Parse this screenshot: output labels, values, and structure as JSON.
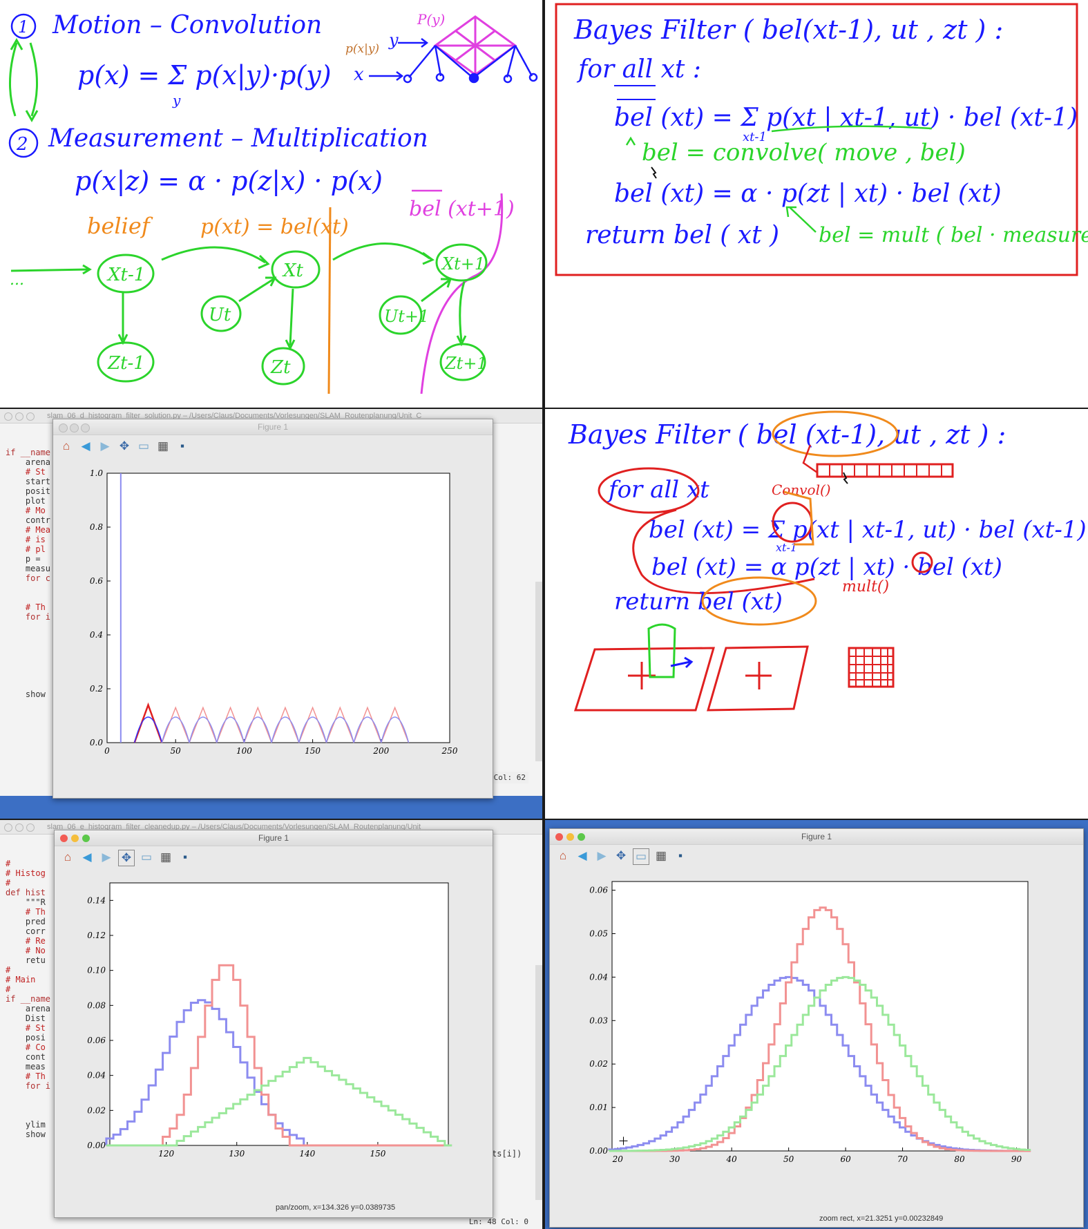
{
  "whiteboard_top_left": {
    "motion_heading": "Motion – Convolution",
    "motion_formula": "p(x) = Σ p(x|y)·p(y)",
    "motion_sum_sub": "y",
    "label_py": "P(y)",
    "label_pxy": "p(x|y)",
    "label_y": "y",
    "label_x": "x",
    "measurement_heading": "Measurement – Multiplication",
    "measurement_formula": "p(x|z) = α · p(z|x) · p(x)",
    "belief_label": "belief",
    "pxt_label": "p(xt) = bel(xt)",
    "bel_next_label": "bel (xt+1)",
    "node_xt_1": "Xt-1",
    "node_xt": "Xt",
    "node_xt1": "Xt+1",
    "node_ut": "Ut",
    "node_ut1": "Ut+1",
    "node_zt_1": "Zt-1",
    "node_zt": "Zt",
    "node_zt1": "Zt+1",
    "dots": "...",
    "num1": "1",
    "num2": "2"
  },
  "whiteboard_top_right": {
    "line1": "Bayes Filter ( bel(xt-1), ut , zt ) :",
    "line2": "for all  xt :",
    "line3": "bel (xt) = Σ p(xt | xt-1, ut) · bel (xt-1)",
    "line3_sub": "xt-1",
    "line4": "bel = convolve( move , bel)",
    "line5": "bel (xt) = α · p(zt | xt) · bel (xt)",
    "line6": "return  bel ( xt )",
    "line6_note": "bel = mult ( bel · measurement)"
  },
  "whiteboard_mid_right": {
    "line1": "Bayes Filter ( bel (xt-1), ut , zt ) :",
    "line2": "for all  xt",
    "convol": "Convol()",
    "line3": "bel (xt) = Σ p(xt | xt-1, ut) · bel (xt-1)",
    "line3_sub": "xt-1",
    "line4": "bel (xt) = α p(zt | xt) · bel (xt)",
    "mult": "mult()",
    "line5": "return  bel (xt)"
  },
  "editor_mid": {
    "title": "slam_06_d_histogram_filter_solution.py – /Users/Claus/Documents/Vorlesungen/SLAM_Routenplanung/Unit_C",
    "lines": [
      "if __name",
      "    arena",
      "",
      "    # St",
      "    start",
      "    posit",
      "    plot",
      "",
      "    # Mo",
      "    contr",
      "",
      "    # Mea",
      "    # is",
      "    # pl",
      "    p = ",
      "    measu",
      "    for c",
      "        ",
      "        ",
      "",
      "    # Th",
      "    for i",
      "        ",
      "        ",
      "        ",
      "",
      "        ",
      "        ",
      "        ",
      "        ",
      "",
      "    show"
    ],
    "status": "Col: 62"
  },
  "figure_mid": {
    "title": "Figure 1",
    "xticks": [
      "0",
      "50",
      "100",
      "150",
      "200",
      "250"
    ],
    "yticks": [
      "0.0",
      "0.2",
      "0.4",
      "0.6",
      "0.8",
      "1.0"
    ]
  },
  "editor_bottom": {
    "title": "slam_06_e_histogram_filter_cleanedup.py – /Users/Claus/Documents/Vorlesungen/SLAM_Routenplanung/Unit_",
    "lines": [
      "#",
      "# Histog",
      "#",
      "def hist",
      "    \"\"\"R",
      "    # Th",
      "    pred",
      "    corr",
      "",
      "    # Re",
      "    # No",
      "    retu",
      "",
      "",
      "#",
      "# Main",
      "#",
      "if __name",
      "    arena",
      "    Dist",
      "",
      "    # St",
      "    posi",
      "",
      "    # Co",
      "    cont",
      "    meas",
      "",
      "    # Th",
      "    for i",
      "        ",
      "        ",
      "        ",
      "",
      "    ylim",
      "    show"
    ],
    "right_snippet": "ts[i])",
    "status": "Ln: 48  Col: 0"
  },
  "figure_bottom_left": {
    "title": "Figure 1",
    "xticks": [
      "120",
      "130",
      "140",
      "150"
    ],
    "yticks": [
      "0.00",
      "0.02",
      "0.04",
      "0.06",
      "0.08",
      "0.10",
      "0.12",
      "0.14"
    ],
    "status": "pan/zoom, x=134.326      y=0.0389735"
  },
  "figure_bottom_right": {
    "title": "Figure 1",
    "xticks": [
      "20",
      "30",
      "40",
      "50",
      "60",
      "70",
      "80",
      "90"
    ],
    "yticks": [
      "0.00",
      "0.01",
      "0.02",
      "0.03",
      "0.04",
      "0.05",
      "0.06"
    ],
    "status": "zoom rect, x=21.3251      y=0.00232849"
  },
  "toolbar": {
    "home": "⌂",
    "back": "◀",
    "forward": "▶",
    "pan": "✥",
    "zoom": "▭",
    "subplots": "▦",
    "save": "▪"
  },
  "colors": {
    "green": "#2bd42b",
    "blue": "#1a1aff",
    "red": "#e02020",
    "orange": "#f08a1c",
    "magenta": "#e040e0",
    "plot_blue": "#8c8cf0",
    "plot_red": "#f29292",
    "plot_green": "#9be89b"
  },
  "chart_data": [
    {
      "type": "line",
      "panel": "figure_mid",
      "xlim": [
        0,
        250
      ],
      "ylim": [
        0,
        1.0
      ],
      "x": [
        10,
        10
      ],
      "series": [
        {
          "values": [
            0,
            1.0
          ]
        },
        {
          "values_note": "repeated triangular peaks",
          "peaks_x": [
            30,
            50,
            70,
            90,
            110,
            130,
            150,
            170,
            190,
            210
          ],
          "peak_height_red": 0.13,
          "peak_height_blue": 0.1
        }
      ]
    },
    {
      "type": "line",
      "panel": "figure_bottom_left",
      "xlim": [
        112,
        160
      ],
      "ylim": [
        0,
        0.15
      ],
      "series": [
        {
          "peak_x": 125,
          "peak_y": 0.083,
          "range": [
            112,
            139
          ]
        },
        {
          "peak_x": 128.5,
          "peak_y": 0.104,
          "range": [
            120,
            137
          ]
        },
        {
          "peak_x": 140,
          "peak_y": 0.05,
          "range": [
            121,
            160
          ]
        }
      ]
    },
    {
      "type": "line",
      "panel": "figure_bottom_right",
      "xlim": [
        19,
        92
      ],
      "ylim": [
        0,
        0.062
      ],
      "series": [
        {
          "peak_x": 50,
          "peak_y": 0.04,
          "sigma": 10
        },
        {
          "peak_x": 56,
          "peak_y": 0.056,
          "sigma": 7
        },
        {
          "peak_x": 60,
          "peak_y": 0.04,
          "sigma": 10
        }
      ]
    }
  ]
}
